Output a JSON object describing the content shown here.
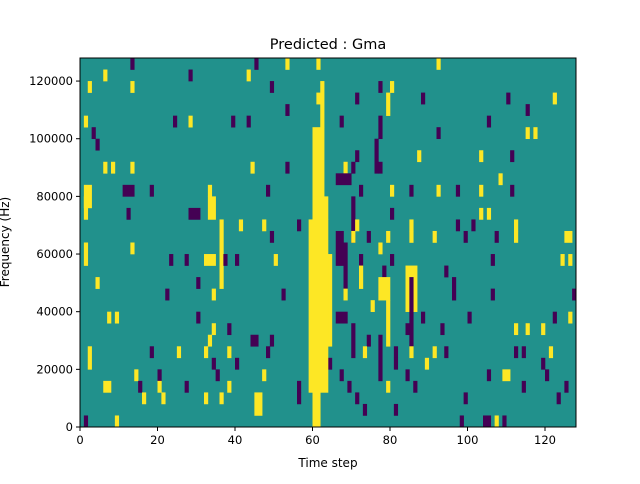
{
  "chart_data": {
    "type": "heatmap",
    "title": "Predicted : Gma",
    "xlabel": "Time step",
    "ylabel": "Frequency (Hz)",
    "xlim": [
      0,
      128
    ],
    "ylim": [
      0,
      128000
    ],
    "n_time_steps": 128,
    "n_freq_bins": 32,
    "bin_hz": 4000,
    "xticks": [
      "0",
      "20",
      "40",
      "60",
      "80",
      "100",
      "120"
    ],
    "xtick_values": [
      0,
      20,
      40,
      60,
      80,
      100,
      120
    ],
    "yticks": [
      "0",
      "20000",
      "40000",
      "60000",
      "80000",
      "100000",
      "120000"
    ],
    "ytick_values": [
      0,
      20000,
      40000,
      60000,
      80000,
      100000,
      120000
    ],
    "colors": {
      "0": "#21918c",
      "1": "#440154",
      "2": "#fde725"
    },
    "background_value": 0,
    "cells_format": "[row_from_top_start, row_from_top_end, time_start, time_end, value]",
    "cells": [
      [
        0,
        0,
        13,
        13,
        1
      ],
      [
        0,
        0,
        53,
        53,
        2
      ],
      [
        0,
        0,
        92,
        92,
        2
      ],
      [
        0,
        0,
        45,
        45,
        1
      ],
      [
        1,
        1,
        28,
        28,
        1
      ],
      [
        1,
        1,
        43,
        43,
        2
      ],
      [
        1,
        1,
        6,
        6,
        2
      ],
      [
        2,
        2,
        2,
        2,
        2
      ],
      [
        2,
        2,
        13,
        13,
        2
      ],
      [
        2,
        2,
        49,
        49,
        1
      ],
      [
        2,
        2,
        77,
        77,
        1
      ],
      [
        2,
        2,
        80,
        80,
        2
      ],
      [
        3,
        3,
        71,
        71,
        1
      ],
      [
        3,
        4,
        79,
        79,
        2
      ],
      [
        3,
        3,
        88,
        88,
        1
      ],
      [
        3,
        3,
        110,
        110,
        1
      ],
      [
        3,
        3,
        122,
        122,
        2
      ],
      [
        4,
        4,
        115,
        115,
        1
      ],
      [
        4,
        4,
        53,
        53,
        1
      ],
      [
        5,
        5,
        1,
        1,
        2
      ],
      [
        5,
        5,
        24,
        24,
        1
      ],
      [
        5,
        5,
        28,
        28,
        2
      ],
      [
        5,
        5,
        39,
        39,
        1
      ],
      [
        5,
        5,
        43,
        43,
        1
      ],
      [
        5,
        5,
        67,
        67,
        1
      ],
      [
        5,
        6,
        77,
        77,
        1
      ],
      [
        5,
        5,
        105,
        105,
        1
      ],
      [
        6,
        6,
        115,
        115,
        2
      ],
      [
        6,
        6,
        3,
        3,
        1
      ],
      [
        6,
        6,
        92,
        92,
        1
      ],
      [
        6,
        6,
        117,
        117,
        2
      ],
      [
        7,
        7,
        4,
        4,
        1
      ],
      [
        7,
        9,
        76,
        76,
        1
      ],
      [
        8,
        8,
        71,
        71,
        1
      ],
      [
        8,
        8,
        87,
        87,
        2
      ],
      [
        8,
        8,
        103,
        103,
        2
      ],
      [
        8,
        8,
        111,
        111,
        1
      ],
      [
        9,
        9,
        6,
        6,
        2
      ],
      [
        9,
        9,
        8,
        8,
        2
      ],
      [
        9,
        9,
        13,
        13,
        2
      ],
      [
        9,
        9,
        44,
        44,
        2
      ],
      [
        9,
        9,
        53,
        53,
        1
      ],
      [
        9,
        9,
        68,
        68,
        2
      ],
      [
        9,
        9,
        70,
        70,
        1
      ],
      [
        9,
        9,
        77,
        77,
        1
      ],
      [
        10,
        10,
        108,
        108,
        2
      ],
      [
        10,
        10,
        66,
        69,
        1
      ],
      [
        11,
        12,
        1,
        2,
        2
      ],
      [
        11,
        11,
        11,
        13,
        1
      ],
      [
        11,
        11,
        18,
        18,
        1
      ],
      [
        11,
        11,
        33,
        33,
        2
      ],
      [
        11,
        11,
        48,
        48,
        1
      ],
      [
        11,
        11,
        72,
        72,
        1
      ],
      [
        11,
        11,
        80,
        80,
        2
      ],
      [
        11,
        11,
        85,
        85,
        1
      ],
      [
        11,
        11,
        92,
        92,
        2
      ],
      [
        11,
        11,
        97,
        97,
        1
      ],
      [
        11,
        11,
        103,
        103,
        2
      ],
      [
        11,
        11,
        111,
        111,
        1
      ],
      [
        12,
        13,
        1,
        1,
        2
      ],
      [
        13,
        13,
        12,
        12,
        1
      ],
      [
        13,
        13,
        28,
        30,
        1
      ],
      [
        12,
        13,
        33,
        34,
        2
      ],
      [
        14,
        14,
        41,
        41,
        2
      ],
      [
        14,
        14,
        47,
        47,
        2
      ],
      [
        14,
        14,
        56,
        56,
        1
      ],
      [
        12,
        15,
        70,
        70,
        1
      ],
      [
        14,
        14,
        71,
        71,
        2
      ],
      [
        13,
        13,
        80,
        80,
        1
      ],
      [
        14,
        14,
        85,
        85,
        2
      ],
      [
        14,
        14,
        97,
        97,
        1
      ],
      [
        14,
        14,
        101,
        101,
        1
      ],
      [
        13,
        13,
        103,
        103,
        2
      ],
      [
        13,
        13,
        105,
        105,
        2
      ],
      [
        14,
        14,
        112,
        112,
        2
      ],
      [
        15,
        15,
        125,
        126,
        2
      ],
      [
        16,
        17,
        1,
        1,
        2
      ],
      [
        16,
        16,
        13,
        13,
        2
      ],
      [
        14,
        19,
        36,
        36,
        2
      ],
      [
        15,
        15,
        49,
        49,
        1
      ],
      [
        15,
        17,
        66,
        67,
        1
      ],
      [
        15,
        15,
        70,
        70,
        2
      ],
      [
        15,
        15,
        74,
        74,
        1
      ],
      [
        16,
        16,
        77,
        77,
        2
      ],
      [
        15,
        15,
        79,
        79,
        2
      ],
      [
        15,
        15,
        85,
        85,
        2
      ],
      [
        15,
        15,
        91,
        91,
        2
      ],
      [
        15,
        15,
        99,
        99,
        1
      ],
      [
        15,
        15,
        107,
        107,
        1
      ],
      [
        15,
        15,
        112,
        112,
        2
      ],
      [
        16,
        19,
        68,
        68,
        1
      ],
      [
        17,
        17,
        72,
        72,
        1
      ],
      [
        17,
        17,
        23,
        23,
        1
      ],
      [
        17,
        17,
        27,
        27,
        1
      ],
      [
        17,
        17,
        32,
        34,
        2
      ],
      [
        17,
        17,
        37,
        37,
        1
      ],
      [
        17,
        17,
        40,
        40,
        1
      ],
      [
        17,
        17,
        50,
        50,
        2
      ],
      [
        18,
        18,
        78,
        78,
        1
      ],
      [
        17,
        17,
        80,
        80,
        1
      ],
      [
        18,
        18,
        94,
        94,
        1
      ],
      [
        17,
        17,
        106,
        106,
        1
      ],
      [
        17,
        17,
        124,
        124,
        2
      ],
      [
        17,
        17,
        126,
        126,
        2
      ],
      [
        17,
        24,
        64,
        64,
        2
      ],
      [
        19,
        19,
        4,
        4,
        2
      ],
      [
        19,
        19,
        30,
        30,
        1
      ],
      [
        18,
        19,
        72,
        72,
        2
      ],
      [
        19,
        20,
        77,
        79,
        2
      ],
      [
        18,
        21,
        84,
        86,
        2
      ],
      [
        19,
        24,
        85,
        85,
        1
      ],
      [
        19,
        20,
        96,
        96,
        1
      ],
      [
        20,
        20,
        106,
        106,
        1
      ],
      [
        20,
        20,
        127,
        127,
        1
      ],
      [
        20,
        20,
        22,
        22,
        1
      ],
      [
        20,
        20,
        34,
        34,
        2
      ],
      [
        20,
        20,
        52,
        52,
        1
      ],
      [
        20,
        20,
        68,
        68,
        2
      ],
      [
        21,
        21,
        75,
        75,
        2
      ],
      [
        22,
        22,
        66,
        68,
        1
      ],
      [
        22,
        22,
        7,
        7,
        2
      ],
      [
        22,
        22,
        9,
        9,
        2
      ],
      [
        22,
        22,
        30,
        30,
        1
      ],
      [
        21,
        24,
        79,
        79,
        2
      ],
      [
        22,
        22,
        88,
        88,
        1
      ],
      [
        22,
        22,
        100,
        100,
        1
      ],
      [
        22,
        22,
        122,
        122,
        1
      ],
      [
        22,
        22,
        126,
        126,
        2
      ],
      [
        23,
        23,
        34,
        34,
        2
      ],
      [
        23,
        23,
        38,
        38,
        1
      ],
      [
        23,
        25,
        70,
        70,
        1
      ],
      [
        23,
        23,
        84,
        84,
        1
      ],
      [
        23,
        23,
        93,
        93,
        1
      ],
      [
        23,
        23,
        112,
        112,
        2
      ],
      [
        23,
        23,
        115,
        115,
        2
      ],
      [
        23,
        23,
        119,
        119,
        2
      ],
      [
        24,
        24,
        33,
        33,
        2
      ],
      [
        24,
        24,
        44,
        45,
        1
      ],
      [
        24,
        24,
        49,
        49,
        1
      ],
      [
        24,
        24,
        74,
        74,
        1
      ],
      [
        24,
        27,
        77,
        77,
        1
      ],
      [
        25,
        26,
        2,
        2,
        2
      ],
      [
        25,
        25,
        18,
        18,
        1
      ],
      [
        25,
        25,
        25,
        25,
        2
      ],
      [
        25,
        25,
        32,
        32,
        2
      ],
      [
        25,
        25,
        38,
        38,
        2
      ],
      [
        25,
        25,
        48,
        48,
        1
      ],
      [
        25,
        25,
        73,
        73,
        2
      ],
      [
        25,
        25,
        81,
        81,
        1
      ],
      [
        25,
        25,
        85,
        85,
        2
      ],
      [
        25,
        25,
        91,
        91,
        2
      ],
      [
        25,
        25,
        94,
        94,
        1
      ],
      [
        25,
        25,
        112,
        112,
        1
      ],
      [
        25,
        25,
        114,
        114,
        1
      ],
      [
        25,
        25,
        121,
        121,
        2
      ],
      [
        26,
        26,
        34,
        34,
        1
      ],
      [
        26,
        26,
        40,
        40,
        1
      ],
      [
        26,
        26,
        64,
        64,
        1
      ],
      [
        26,
        26,
        81,
        81,
        1
      ],
      [
        26,
        26,
        89,
        89,
        2
      ],
      [
        26,
        26,
        119,
        119,
        1
      ],
      [
        27,
        27,
        14,
        14,
        2
      ],
      [
        27,
        27,
        20,
        20,
        1
      ],
      [
        27,
        27,
        35,
        35,
        1
      ],
      [
        27,
        27,
        47,
        47,
        2
      ],
      [
        27,
        27,
        67,
        67,
        1
      ],
      [
        27,
        27,
        84,
        84,
        1
      ],
      [
        27,
        27,
        105,
        105,
        1
      ],
      [
        27,
        27,
        109,
        110,
        2
      ],
      [
        27,
        27,
        120,
        120,
        1
      ],
      [
        28,
        28,
        6,
        7,
        2
      ],
      [
        28,
        28,
        15,
        15,
        1
      ],
      [
        28,
        28,
        20,
        20,
        2
      ],
      [
        28,
        28,
        27,
        27,
        1
      ],
      [
        28,
        28,
        38,
        38,
        2
      ],
      [
        28,
        28,
        56,
        56,
        1
      ],
      [
        28,
        28,
        69,
        69,
        1
      ],
      [
        28,
        28,
        79,
        79,
        2
      ],
      [
        28,
        28,
        86,
        86,
        1
      ],
      [
        28,
        28,
        114,
        114,
        1
      ],
      [
        28,
        28,
        125,
        125,
        1
      ],
      [
        29,
        29,
        16,
        16,
        2
      ],
      [
        29,
        29,
        21,
        21,
        2
      ],
      [
        29,
        29,
        32,
        32,
        2
      ],
      [
        29,
        29,
        36,
        36,
        2
      ],
      [
        29,
        30,
        45,
        46,
        2
      ],
      [
        29,
        29,
        56,
        56,
        1
      ],
      [
        29,
        29,
        71,
        71,
        1
      ],
      [
        29,
        29,
        99,
        99,
        1
      ],
      [
        29,
        29,
        123,
        123,
        1
      ],
      [
        30,
        30,
        73,
        73,
        1
      ],
      [
        30,
        30,
        81,
        81,
        1
      ],
      [
        31,
        31,
        9,
        9,
        2
      ],
      [
        31,
        31,
        1,
        1,
        1
      ],
      [
        31,
        31,
        98,
        98,
        1
      ],
      [
        31,
        31,
        104,
        105,
        1
      ],
      [
        31,
        31,
        107,
        107,
        2
      ],
      [
        31,
        31,
        109,
        109,
        1
      ],
      [
        0,
        0,
        61,
        61,
        2
      ],
      [
        2,
        5,
        62,
        62,
        2
      ],
      [
        3,
        3,
        61,
        61,
        2
      ],
      [
        6,
        11,
        60,
        62,
        2
      ],
      [
        12,
        13,
        60,
        63,
        2
      ],
      [
        14,
        28,
        59,
        63,
        2
      ],
      [
        29,
        31,
        60,
        61,
        2
      ]
    ]
  }
}
